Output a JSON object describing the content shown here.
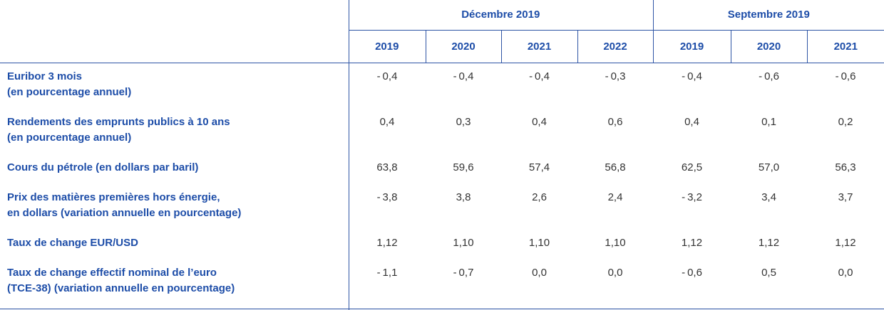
{
  "colors": {
    "accentText": "#1d4da8",
    "valueText": "#333333",
    "line": "#2e55a5",
    "background": "#ffffff"
  },
  "table": {
    "groups": [
      {
        "label": "Décembre 2019",
        "years": [
          "2019",
          "2020",
          "2021",
          "2022"
        ]
      },
      {
        "label": "Septembre 2019",
        "years": [
          "2019",
          "2020",
          "2021"
        ]
      }
    ],
    "rows": [
      {
        "label_line1": "Euribor 3 mois",
        "label_line2": "(en pourcentage annuel)",
        "values": [
          "- 0,4",
          "- 0,4",
          "- 0,4",
          "- 0,3",
          "- 0,4",
          "- 0,6",
          "- 0,6"
        ]
      },
      {
        "label_line1": "Rendements des emprunts publics à 10 ans",
        "label_line2": "(en pourcentage annuel)",
        "values": [
          "0,4",
          "0,3",
          "0,4",
          "0,6",
          "0,4",
          "0,1",
          "0,2"
        ]
      },
      {
        "label_line1": "Cours du pétrole (en dollars par baril)",
        "label_line2": "",
        "values": [
          "63,8",
          "59,6",
          "57,4",
          "56,8",
          "62,5",
          "57,0",
          "56,3"
        ]
      },
      {
        "label_line1": "Prix des matières premières hors énergie,",
        "label_line2": "en dollars (variation annuelle en pourcentage)",
        "values": [
          "- 3,8",
          "3,8",
          "2,6",
          "2,4",
          "- 3,2",
          "3,4",
          "3,7"
        ]
      },
      {
        "label_line1": "Taux de change EUR/USD",
        "label_line2": "",
        "values": [
          "1,12",
          "1,10",
          "1,10",
          "1,10",
          "1,12",
          "1,12",
          "1,12"
        ]
      },
      {
        "label_line1": "Taux de change effectif nominal de l’euro",
        "label_line2": "(TCE-38) (variation annuelle en pourcentage)",
        "values": [
          "- 1,1",
          "- 0,7",
          "0,0",
          "0,0",
          "- 0,6",
          "0,5",
          "0,0"
        ]
      }
    ]
  }
}
